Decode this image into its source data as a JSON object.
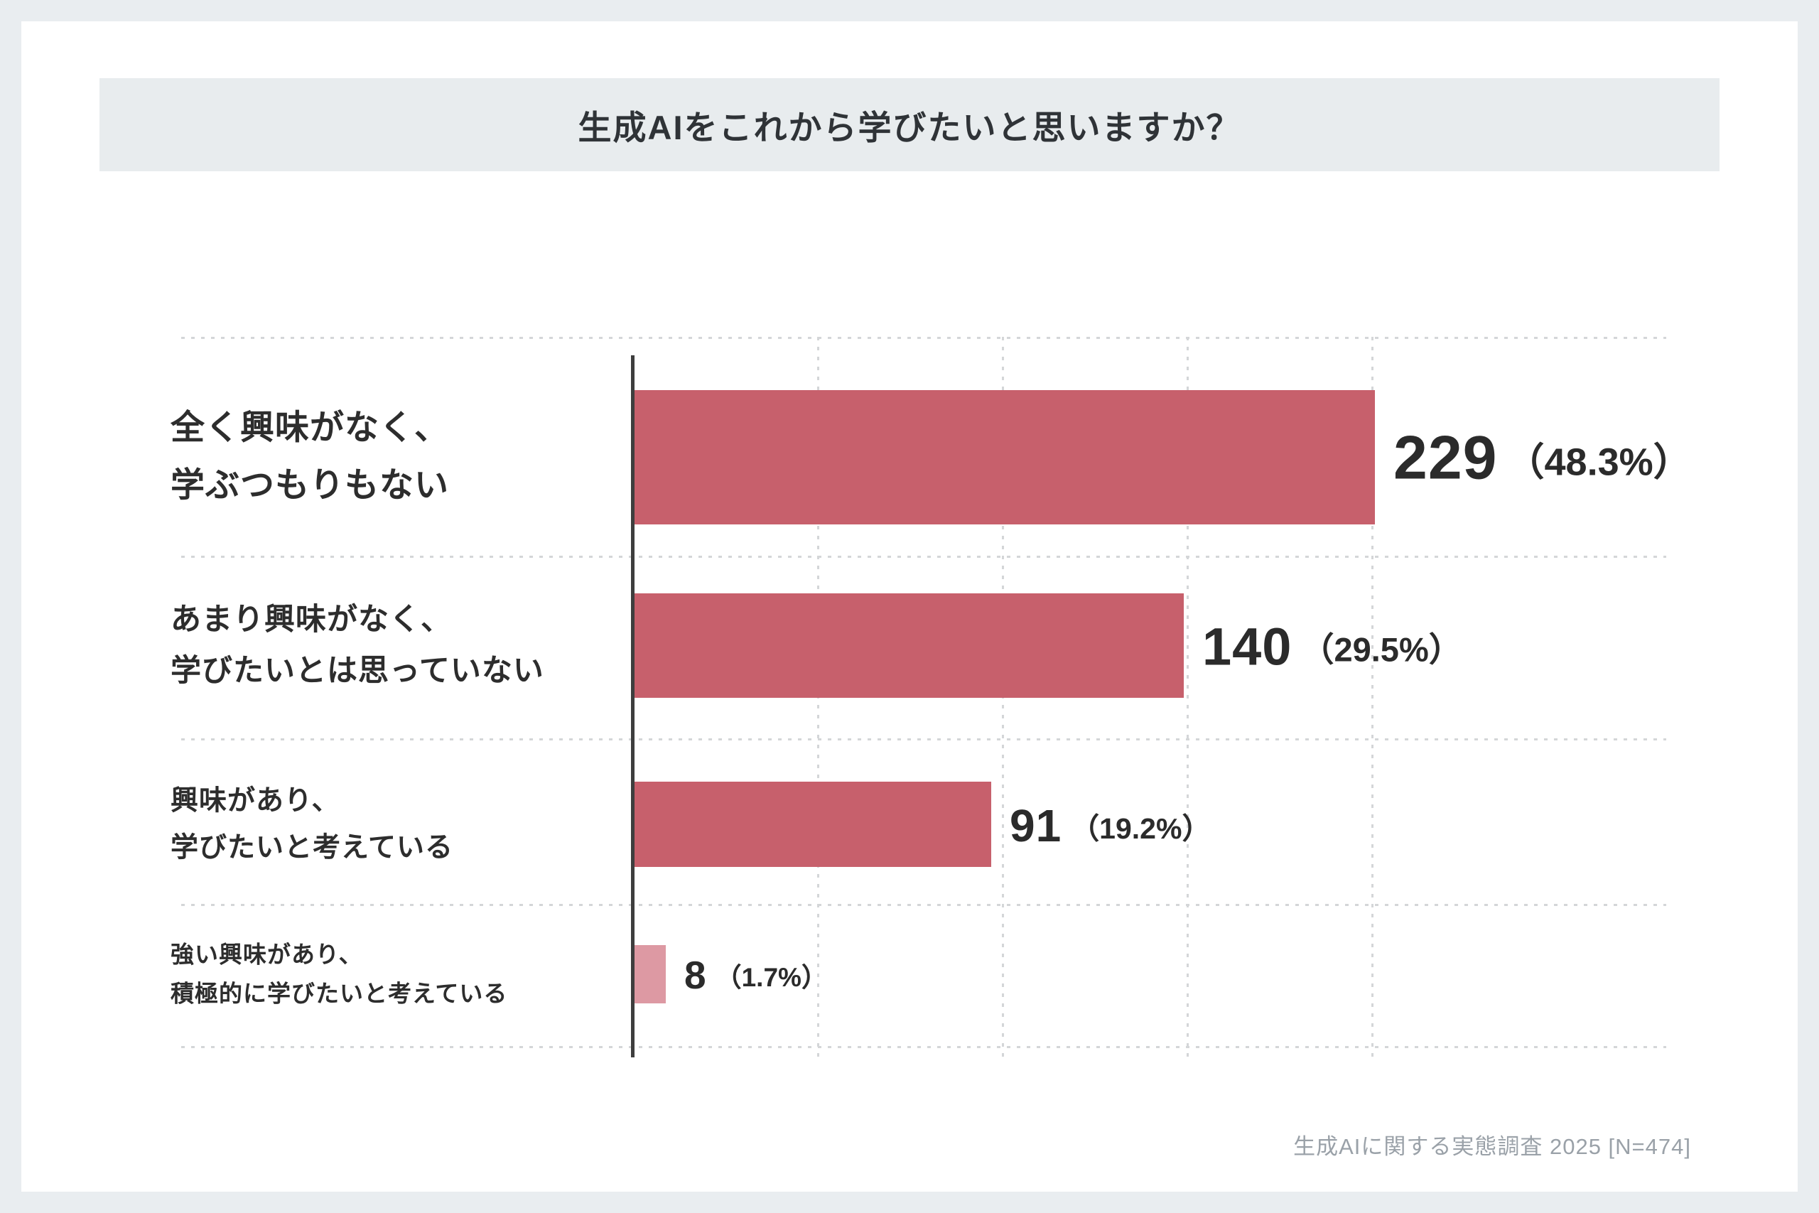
{
  "header": {
    "title": "生成AIをこれから学びたいと思いますか？"
  },
  "footer": {
    "source_note": "生成AIに関する実態調査 2025 [N=474]"
  },
  "colors": {
    "page_background": "#e9edf0",
    "card_background": "#ffffff",
    "banner_background": "#e8ecee",
    "bar_main": "#c7606c",
    "bar_light": "#dd99a3",
    "axis": "#3e3e3e",
    "grid_dotted": "#d4d6d8",
    "text_dark": "#2b2b2b",
    "text_muted": "#9aa1a8"
  },
  "chart_data": {
    "type": "bar",
    "orientation": "horizontal",
    "title": "生成AIをこれから学びたいと思いますか？",
    "legend": "none",
    "grid": "dotted vertical gridlines and dotted row separators",
    "xlim": [
      0,
      240
    ],
    "sample_size": "N=474",
    "categories": [
      "全く興味がなく、学ぶつもりもない",
      "あまり興味がなく、学びたいとは思っていない",
      "興味があり、学びたいと考えている",
      "強い興味があり、積極的に学びたいと考えている"
    ],
    "values": [
      229,
      140,
      91,
      8
    ],
    "percents": [
      "48.3%",
      "29.5%",
      "19.2%",
      "1.7%"
    ],
    "bars": [
      {
        "label_line1": "全く興味がなく、",
        "label_line2": "学ぶつもりもない",
        "value": 229,
        "percent_label": "（48.3%）",
        "color": "#c7606c"
      },
      {
        "label_line1": "あまり興味がなく、",
        "label_line2": "学びたいとは思っていない",
        "value": 140,
        "percent_label": "（29.5%）",
        "color": "#c7606c"
      },
      {
        "label_line1": "興味があり、",
        "label_line2": "学びたいと考えている",
        "value": 91,
        "percent_label": "（19.2%）",
        "color": "#c7606c"
      },
      {
        "label_line1": "強い興味があり、",
        "label_line2": "積極的に学びたいと考えている",
        "value": 8,
        "percent_label": "（1.7%）",
        "color": "#dd99a3"
      }
    ]
  }
}
